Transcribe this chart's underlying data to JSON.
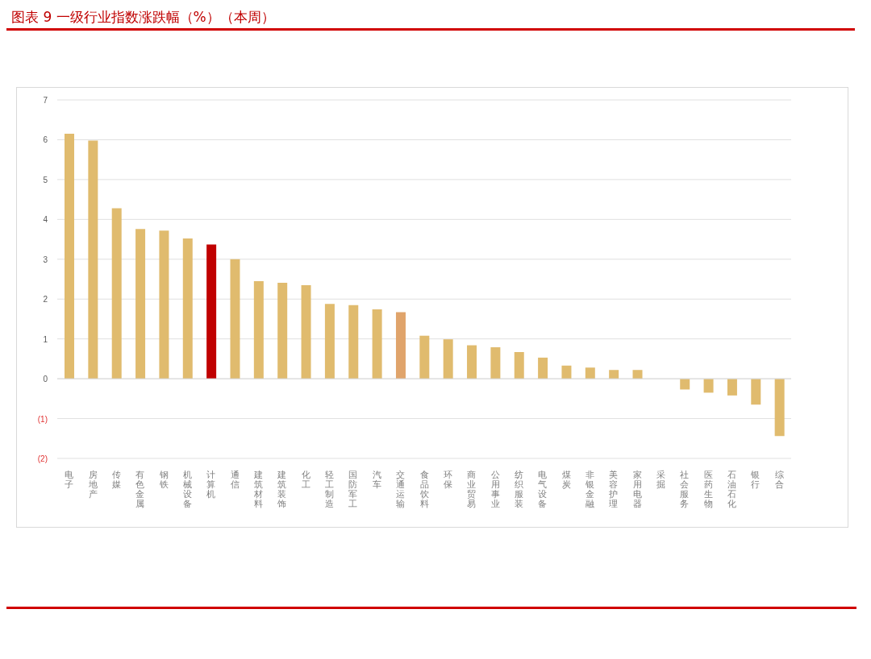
{
  "chart_data": {
    "type": "bar",
    "title": "图表 9 一级行业指数涨跌幅（%）（本周）",
    "categories": [
      "电子",
      "房地产",
      "传媒",
      "有色金属",
      "钢铁",
      "机械设备",
      "计算机",
      "通信",
      "建筑材料",
      "建筑装饰",
      "化工",
      "轻工制造",
      "国防军工",
      "汽车",
      "交通运输",
      "食品饮料",
      "环保",
      "商业贸易",
      "公用事业",
      "纺织服装",
      "电气设备",
      "煤炭",
      "非银金融",
      "美容护理",
      "家用电器",
      "采掘",
      "社会服务",
      "医药生物",
      "石油石化",
      "银行",
      "综合"
    ],
    "values": [
      6.15,
      5.98,
      4.28,
      3.76,
      3.72,
      3.52,
      3.37,
      3.0,
      2.45,
      2.41,
      2.35,
      1.88,
      1.85,
      1.74,
      1.67,
      1.08,
      0.99,
      0.84,
      0.79,
      0.67,
      0.53,
      0.33,
      0.28,
      0.22,
      0.22,
      0,
      -0.27,
      -0.35,
      -0.42,
      -0.65,
      -1.44
    ],
    "colors": [
      "#e0bb6e",
      "#e0bb6e",
      "#e0bb6e",
      "#e0bb6e",
      "#e0bb6e",
      "#e0bb6e",
      "#c00000",
      "#e0bb6e",
      "#e0bb6e",
      "#e0bb6e",
      "#e0bb6e",
      "#e0bb6e",
      "#e0bb6e",
      "#e0bb6e",
      "#e0a46b",
      "#e0bb6e",
      "#e0bb6e",
      "#e0bb6e",
      "#e0bb6e",
      "#e0bb6e",
      "#e0bb6e",
      "#e0bb6e",
      "#e0bb6e",
      "#e0bb6e",
      "#e0bb6e",
      "#e0bb6e",
      "#e0bb6e",
      "#e0bb6e",
      "#e0bb6e",
      "#e0bb6e",
      "#e0bb6e"
    ],
    "ylim": [
      -2,
      7
    ],
    "yticks": [
      {
        "value": -2,
        "label": "(2)"
      },
      {
        "value": -1,
        "label": "(1)"
      },
      0,
      1,
      2,
      3,
      4,
      5,
      6,
      7
    ],
    "grid": "y",
    "legend": false
  }
}
